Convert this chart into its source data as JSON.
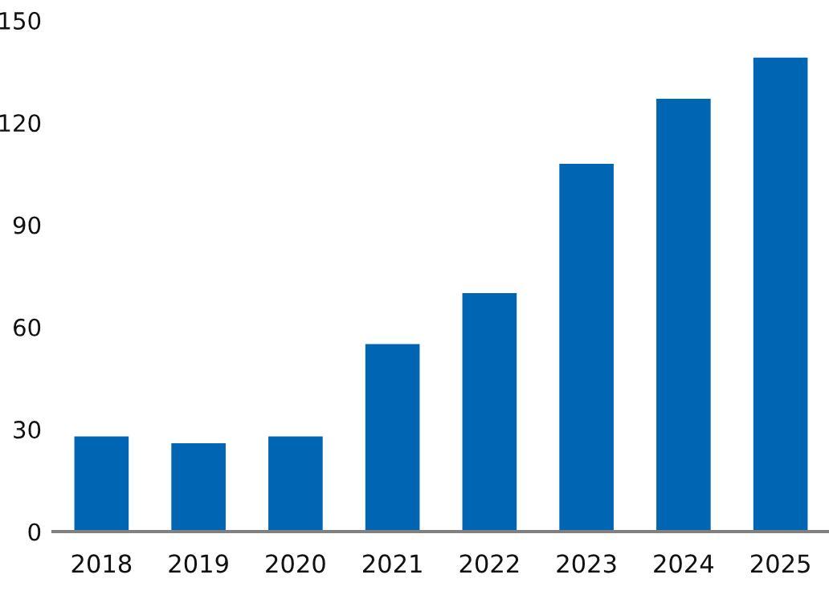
{
  "chart_data": {
    "type": "bar",
    "categories": [
      "2018",
      "2019",
      "2020",
      "2021",
      "2022",
      "2023",
      "2024",
      "2025"
    ],
    "values": [
      27.9,
      25.9,
      27.9,
      55,
      70,
      107.9,
      127,
      139.1
    ],
    "color": "#0066b3",
    "ylim": [
      0,
      150
    ],
    "yticks": [
      0,
      30,
      60,
      90,
      120,
      150
    ],
    "grid": false,
    "legend": false
  }
}
